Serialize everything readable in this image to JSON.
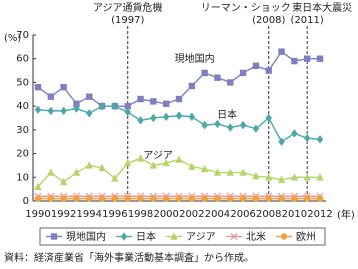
{
  "chart_data": {
    "type": "line",
    "y_label": "(%)",
    "x_label": "(年)",
    "x": [
      1990,
      1991,
      1992,
      1993,
      1994,
      1995,
      1996,
      1997,
      1998,
      1999,
      2000,
      2001,
      2002,
      2003,
      2004,
      2005,
      2006,
      2007,
      2008,
      2009,
      2010,
      2011,
      2012
    ],
    "xlim": [
      1990,
      2012
    ],
    "xticks": [
      1990,
      1992,
      1994,
      1996,
      1998,
      2000,
      2002,
      2004,
      2006,
      2008,
      2010,
      2012
    ],
    "ylim": [
      0,
      70
    ],
    "yticks": [
      0,
      10,
      20,
      30,
      40,
      50,
      60,
      70
    ],
    "series": [
      {
        "name": "現地国内",
        "color": "#7f7fbf",
        "marker": "square",
        "values": [
          48,
          44,
          48,
          41,
          44,
          40,
          40,
          40,
          43,
          42,
          41,
          43,
          48.5,
          54,
          52,
          50,
          54,
          57,
          55,
          63,
          59,
          60,
          60
        ]
      },
      {
        "name": "日本",
        "color": "#4ba8a8",
        "marker": "diamond",
        "values": [
          38.5,
          38,
          38,
          39,
          37,
          40,
          40,
          37.5,
          34,
          35,
          35.5,
          36,
          35.5,
          32,
          32.5,
          31,
          32,
          30.5,
          35,
          25,
          28.5,
          26.5,
          26
        ]
      },
      {
        "name": "アジア",
        "color": "#b5d56a",
        "marker": "triangle",
        "values": [
          6,
          12,
          8,
          12,
          15,
          14,
          9.5,
          16,
          18,
          15,
          16,
          17.5,
          14.5,
          13.5,
          12,
          12,
          12,
          10.5,
          10,
          9,
          10,
          10,
          10
        ]
      },
      {
        "name": "北米",
        "color": "#e89a9a",
        "marker": "cross",
        "values": [
          2,
          2,
          2,
          2,
          2,
          2,
          2,
          2,
          2,
          2,
          2,
          2,
          2,
          2,
          2,
          2,
          2,
          2,
          2,
          2,
          2,
          2,
          2
        ]
      },
      {
        "name": "欧州",
        "color": "#f0a040",
        "marker": "circle",
        "values": [
          1,
          1,
          1,
          1,
          1,
          1,
          1,
          1,
          1,
          1,
          1,
          1,
          1,
          1,
          1,
          1,
          1,
          1,
          1,
          1,
          1,
          1,
          1
        ]
      }
    ],
    "annotations": [
      {
        "text": "アジア通貨危機",
        "label": "(1997)",
        "x": 1997
      },
      {
        "text": "リーマン・ショック",
        "label": "(2008)",
        "x": 2008
      },
      {
        "text": "東日本大震災",
        "label": "(2011)",
        "x": 2011
      }
    ],
    "source": "資料：経済産業省「海外事業活動基本調査」から作成。"
  }
}
